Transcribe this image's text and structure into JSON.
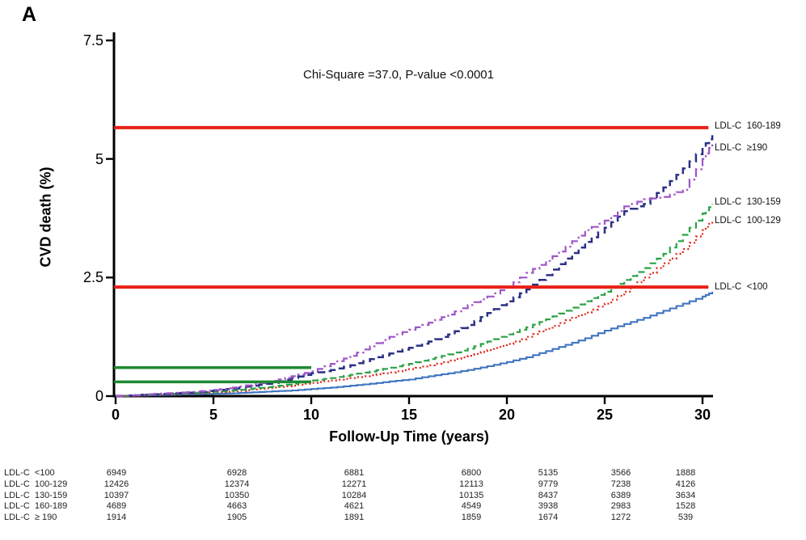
{
  "panel_label": "A",
  "chart_data": {
    "type": "line",
    "title": "",
    "annotation": "Chi-Square =37.0, P-value <0.0001",
    "xlabel": "Follow-Up Time (years)",
    "ylabel": "CVD death (%)",
    "xlim": [
      0,
      30.6
    ],
    "ylim": [
      0,
      7.8
    ],
    "x_ticks": [
      0,
      5,
      10,
      15,
      20,
      25,
      30
    ],
    "y_ticks": [
      0,
      2.5,
      5,
      7.5
    ],
    "grid": false,
    "legend_position": "right-edge-labels",
    "series": [
      {
        "name": "LDL-C <100",
        "edge_label": "LDL-C  <100",
        "color": "#3f74c0",
        "style": "solid",
        "label_value": 2.28,
        "points": [
          [
            0,
            0
          ],
          [
            1,
            0.01
          ],
          [
            2,
            0.02
          ],
          [
            3,
            0.03
          ],
          [
            4,
            0.04
          ],
          [
            5,
            0.05
          ],
          [
            6,
            0.06
          ],
          [
            7,
            0.08
          ],
          [
            8,
            0.1
          ],
          [
            9,
            0.12
          ],
          [
            10,
            0.15
          ],
          [
            11,
            0.18
          ],
          [
            12,
            0.22
          ],
          [
            13,
            0.26
          ],
          [
            14,
            0.31
          ],
          [
            15,
            0.35
          ],
          [
            16,
            0.42
          ],
          [
            17,
            0.48
          ],
          [
            18,
            0.55
          ],
          [
            19,
            0.63
          ],
          [
            20,
            0.72
          ],
          [
            21,
            0.82
          ],
          [
            22,
            0.95
          ],
          [
            23,
            1.08
          ],
          [
            24,
            1.22
          ],
          [
            25,
            1.38
          ],
          [
            26,
            1.52
          ],
          [
            27,
            1.65
          ],
          [
            28,
            1.8
          ],
          [
            29,
            1.95
          ],
          [
            30,
            2.1
          ],
          [
            30.5,
            2.2
          ]
        ]
      },
      {
        "name": "LDL-C 100-129",
        "edge_label": "LDL-C  100-129",
        "color": "#e02417",
        "style": "dotted",
        "label_value": 3.68,
        "points": [
          [
            0,
            0
          ],
          [
            1,
            0.01
          ],
          [
            2,
            0.03
          ],
          [
            3,
            0.04
          ],
          [
            4,
            0.06
          ],
          [
            5,
            0.08
          ],
          [
            6,
            0.1
          ],
          [
            7,
            0.14
          ],
          [
            8,
            0.18
          ],
          [
            9,
            0.22
          ],
          [
            10,
            0.28
          ],
          [
            11,
            0.33
          ],
          [
            12,
            0.38
          ],
          [
            13,
            0.44
          ],
          [
            14,
            0.5
          ],
          [
            15,
            0.57
          ],
          [
            16,
            0.65
          ],
          [
            17,
            0.75
          ],
          [
            18,
            0.85
          ],
          [
            19,
            0.97
          ],
          [
            20,
            1.1
          ],
          [
            21,
            1.25
          ],
          [
            22,
            1.42
          ],
          [
            23,
            1.6
          ],
          [
            24,
            1.76
          ],
          [
            25,
            1.95
          ],
          [
            26,
            2.2
          ],
          [
            27,
            2.5
          ],
          [
            28,
            2.8
          ],
          [
            29,
            3.1
          ],
          [
            30,
            3.5
          ],
          [
            30.5,
            3.7
          ]
        ]
      },
      {
        "name": "LDL-C 130-159",
        "edge_label": "LDL-C  130-159",
        "color": "#2ba246",
        "style": "dashed",
        "label_value": 4.08,
        "points": [
          [
            0,
            0
          ],
          [
            1,
            0.02
          ],
          [
            2,
            0.04
          ],
          [
            3,
            0.05
          ],
          [
            4,
            0.07
          ],
          [
            5,
            0.09
          ],
          [
            6,
            0.12
          ],
          [
            7,
            0.16
          ],
          [
            8,
            0.2
          ],
          [
            9,
            0.26
          ],
          [
            10,
            0.33
          ],
          [
            11,
            0.38
          ],
          [
            12,
            0.45
          ],
          [
            13,
            0.52
          ],
          [
            14,
            0.6
          ],
          [
            15,
            0.68
          ],
          [
            16,
            0.78
          ],
          [
            17,
            0.88
          ],
          [
            18,
            1.0
          ],
          [
            19,
            1.15
          ],
          [
            20,
            1.3
          ],
          [
            21,
            1.45
          ],
          [
            22,
            1.62
          ],
          [
            23,
            1.8
          ],
          [
            24,
            2.0
          ],
          [
            25,
            2.2
          ],
          [
            26,
            2.45
          ],
          [
            27,
            2.7
          ],
          [
            28,
            3.0
          ],
          [
            29,
            3.4
          ],
          [
            30,
            3.85
          ],
          [
            30.5,
            4.05
          ]
        ]
      },
      {
        "name": "LDL-C 160-189",
        "edge_label": "LDL-C  160-189",
        "color": "#2a3183",
        "style": "longdash",
        "label_value": 5.68,
        "points": [
          [
            0,
            0
          ],
          [
            1,
            0.02
          ],
          [
            2,
            0.04
          ],
          [
            3,
            0.06
          ],
          [
            4,
            0.08
          ],
          [
            5,
            0.12
          ],
          [
            6,
            0.16
          ],
          [
            7,
            0.22
          ],
          [
            8,
            0.28
          ],
          [
            9,
            0.38
          ],
          [
            10,
            0.48
          ],
          [
            11,
            0.55
          ],
          [
            12,
            0.65
          ],
          [
            13,
            0.78
          ],
          [
            14,
            0.9
          ],
          [
            15,
            1.02
          ],
          [
            16,
            1.15
          ],
          [
            17,
            1.3
          ],
          [
            18,
            1.5
          ],
          [
            19,
            1.75
          ],
          [
            20,
            2.0
          ],
          [
            21,
            2.25
          ],
          [
            22,
            2.55
          ],
          [
            23,
            2.9
          ],
          [
            24,
            3.25
          ],
          [
            25,
            3.55
          ],
          [
            26,
            3.9
          ],
          [
            27,
            4.05
          ],
          [
            28,
            4.4
          ],
          [
            29,
            4.8
          ],
          [
            30,
            5.25
          ],
          [
            30.5,
            5.5
          ]
        ]
      },
      {
        "name": "LDL-C ≥190",
        "edge_label": "LDL-C  ≥190",
        "color": "#9e55c6",
        "style": "dashdot",
        "label_value": 5.22,
        "points": [
          [
            0,
            0
          ],
          [
            1,
            0.02
          ],
          [
            2,
            0.05
          ],
          [
            3,
            0.07
          ],
          [
            4,
            0.09
          ],
          [
            5,
            0.13
          ],
          [
            6,
            0.18
          ],
          [
            7,
            0.25
          ],
          [
            8,
            0.32
          ],
          [
            9,
            0.42
          ],
          [
            10,
            0.52
          ],
          [
            11,
            0.68
          ],
          [
            12,
            0.85
          ],
          [
            13,
            1.05
          ],
          [
            14,
            1.25
          ],
          [
            15,
            1.4
          ],
          [
            16,
            1.55
          ],
          [
            17,
            1.72
          ],
          [
            18,
            1.92
          ],
          [
            19,
            2.1
          ],
          [
            20,
            2.3
          ],
          [
            21,
            2.6
          ],
          [
            22,
            2.85
          ],
          [
            23,
            3.15
          ],
          [
            24,
            3.5
          ],
          [
            25,
            3.7
          ],
          [
            26,
            4.0
          ],
          [
            27,
            4.15
          ],
          [
            28,
            4.2
          ],
          [
            29,
            4.35
          ],
          [
            30,
            5.0
          ],
          [
            30.5,
            5.35
          ]
        ]
      }
    ],
    "reference_lines": [
      {
        "color": "#e82015",
        "y": 5.66,
        "x_start": 0,
        "x_end": 30.3,
        "width": 4
      },
      {
        "color": "#e82015",
        "y": 2.3,
        "x_start": 0,
        "x_end": 30.3,
        "width": 4
      },
      {
        "color": "#1f8a33",
        "y": 0.6,
        "x_start": 0,
        "x_end": 10,
        "width": 3.5
      },
      {
        "color": "#1f8a33",
        "y": 0.3,
        "x_start": 0,
        "x_end": 10,
        "width": 3.5
      }
    ],
    "risk_table": {
      "times": [
        0,
        5,
        10,
        15,
        20,
        25,
        30
      ],
      "rows": [
        {
          "label": "LDL-C  <100",
          "counts": [
            6949,
            6928,
            6881,
            6800,
            5135,
            3566,
            1888
          ]
        },
        {
          "label": "LDL-C  100-129",
          "counts": [
            12426,
            12374,
            12271,
            12113,
            9779,
            7238,
            4126
          ]
        },
        {
          "label": "LDL-C  130-159",
          "counts": [
            10397,
            10350,
            10284,
            10135,
            8437,
            6389,
            3634
          ]
        },
        {
          "label": "LDL-C  160-189",
          "counts": [
            4689,
            4663,
            4621,
            4549,
            3938,
            2983,
            1528
          ]
        },
        {
          "label": "LDL-C  ≥ 190",
          "counts": [
            1914,
            1905,
            1891,
            1859,
            1674,
            1272,
            539
          ]
        }
      ]
    }
  }
}
